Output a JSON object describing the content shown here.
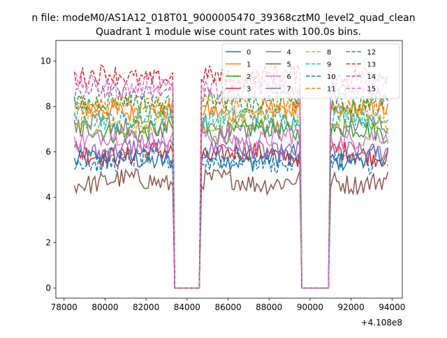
{
  "chart_data": {
    "type": "line",
    "suptitle": "n file: modeM0/AS1A12_018T01_9000005470_39368cztM0_level2_quad_clean",
    "title": "Quadrant 1 module wise count rates with 100.0s bins.",
    "xlabel": "",
    "ylabel": "",
    "x_offset_label": "+4.108e8",
    "xlim": [
      77600,
      94500
    ],
    "ylim": [
      -0.45,
      10.9
    ],
    "x_ticks": [
      78000,
      80000,
      82000,
      84000,
      86000,
      88000,
      90000,
      92000,
      94000
    ],
    "x_tick_labels": [
      "78000",
      "80000",
      "82000",
      "84000",
      "86000",
      "88000",
      "90000",
      "92000",
      "94000"
    ],
    "y_ticks": [
      0,
      2,
      4,
      6,
      8,
      10
    ],
    "y_tick_labels": [
      "0",
      "2",
      "4",
      "6",
      "8",
      "10"
    ],
    "grid": false,
    "legend_position": "upper right",
    "legend_columns": 4,
    "bin_seconds": 100,
    "x_start": 78500,
    "gaps": [
      [
        83400,
        84600
      ],
      [
        89600,
        90900
      ]
    ],
    "gap_value": 0,
    "series": [
      {
        "name": "0",
        "mean": 5.7,
        "color": "#1f77b4",
        "dashed": false
      },
      {
        "name": "1",
        "mean": 7.8,
        "color": "#ff7f0e",
        "dashed": false
      },
      {
        "name": "2",
        "mean": 6.9,
        "color": "#2ca02c",
        "dashed": false
      },
      {
        "name": "3",
        "mean": 5.9,
        "color": "#d62728",
        "dashed": false
      },
      {
        "name": "4",
        "mean": 6.1,
        "color": "#9467bd",
        "dashed": false
      },
      {
        "name": "5",
        "mean": 4.7,
        "color": "#8c564b",
        "dashed": false
      },
      {
        "name": "6",
        "mean": 6.6,
        "color": "#e377c2",
        "dashed": false
      },
      {
        "name": "7",
        "mean": 7.1,
        "color": "#7f7f7f",
        "dashed": false
      },
      {
        "name": "8",
        "mean": 7.3,
        "color": "#bcbd22",
        "dashed": true
      },
      {
        "name": "9",
        "mean": 7.5,
        "color": "#17becf",
        "dashed": true
      },
      {
        "name": "10",
        "mean": 5.6,
        "color": "#1f77b4",
        "dashed": true
      },
      {
        "name": "11",
        "mean": 8.0,
        "color": "#ff7f0e",
        "dashed": true
      },
      {
        "name": "12",
        "mean": 8.2,
        "color": "#2ca02c",
        "dashed": true
      },
      {
        "name": "13",
        "mean": 9.3,
        "color": "#d62728",
        "dashed": true
      },
      {
        "name": "14",
        "mean": 8.6,
        "color": "#9467bd",
        "dashed": true
      },
      {
        "name": "15",
        "mean": 8.9,
        "color": "#e377c2",
        "dashed": true
      }
    ]
  }
}
